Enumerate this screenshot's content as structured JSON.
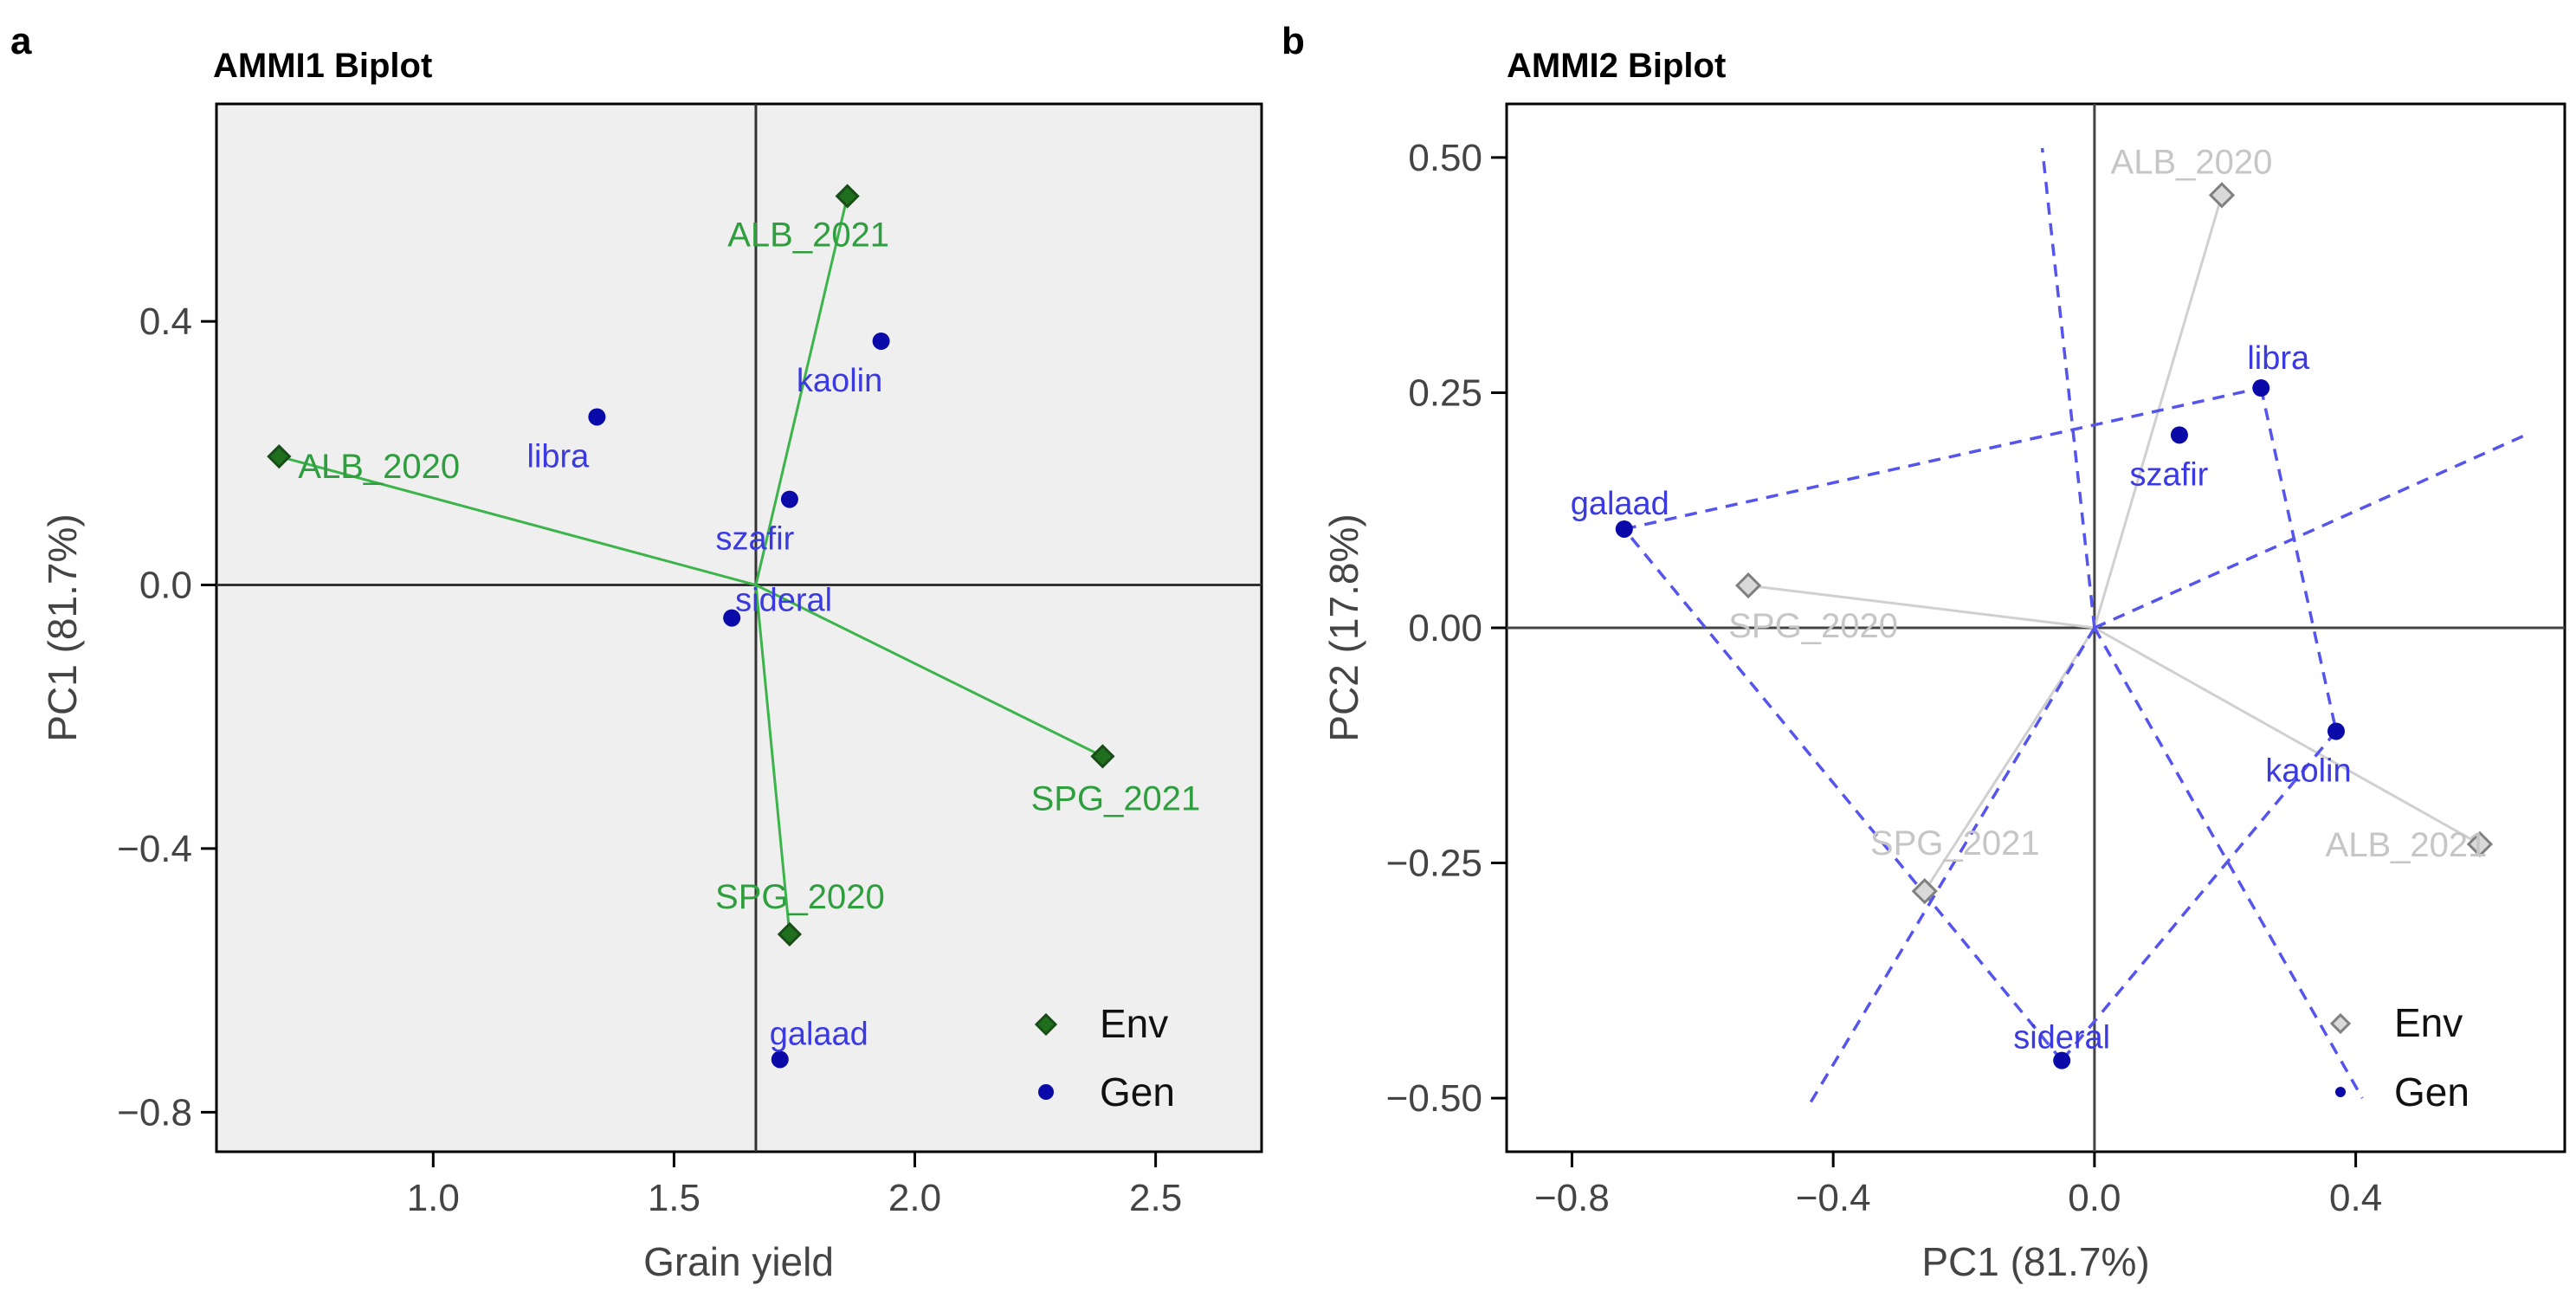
{
  "panel_labels": [
    "a",
    "b"
  ],
  "chart_data": [
    {
      "type": "scatter",
      "title": "AMMI1 Biplot",
      "xlabel": "Grain yield",
      "ylabel": "PC1 (81.7%)",
      "xlim": [
        0.55,
        2.72
      ],
      "ylim": [
        -0.86,
        0.73
      ],
      "xticks": [
        1.0,
        1.5,
        2.0,
        2.5
      ],
      "xtick_labels": [
        "1.0",
        "1.5",
        "2.0",
        "2.5"
      ],
      "yticks": [
        0.4,
        0.0,
        -0.4,
        -0.8
      ],
      "ytick_labels": [
        "0.4",
        "0.0",
        "−0.4",
        "−0.8"
      ],
      "origin": [
        1.67,
        0.0
      ],
      "background": "#efefef",
      "env_color": "#2e9e3e",
      "env_marker_color": "#1f6f1f",
      "gen_color": "#3a3ae0",
      "gen_marker_color": "#0a0aa8",
      "vector_color": "#3cb44b",
      "series": [
        {
          "name": "Env",
          "points": [
            {
              "label": "ALB_2020",
              "x": 0.68,
              "y": 0.195
            },
            {
              "label": "ALB_2021",
              "x": 1.86,
              "y": 0.59
            },
            {
              "label": "SPG_2020",
              "x": 1.74,
              "y": -0.53
            },
            {
              "label": "SPG_2021",
              "x": 2.39,
              "y": -0.26
            }
          ]
        },
        {
          "name": "Gen",
          "points": [
            {
              "label": "libra",
              "x": 1.34,
              "y": 0.255
            },
            {
              "label": "kaolin",
              "x": 1.93,
              "y": 0.37
            },
            {
              "label": "szafir",
              "x": 1.74,
              "y": 0.13
            },
            {
              "label": "sideral",
              "x": 1.62,
              "y": -0.05
            },
            {
              "label": "galaad",
              "x": 1.72,
              "y": -0.72
            }
          ]
        }
      ],
      "legend": {
        "entries": [
          "Env",
          "Gen"
        ],
        "position": "bottom-right"
      }
    },
    {
      "type": "scatter",
      "title": "AMMI2 Biplot",
      "xlabel": "PC1 (81.7%)",
      "ylabel": "PC2 (17.8%)",
      "xlim": [
        -0.9,
        0.72
      ],
      "ylim": [
        -0.557,
        0.557
      ],
      "xticks": [
        -0.8,
        -0.4,
        0.0,
        0.4
      ],
      "xtick_labels": [
        "−0.8",
        "−0.4",
        "0.0",
        "0.4"
      ],
      "yticks": [
        0.5,
        0.25,
        0.0,
        -0.25,
        -0.5
      ],
      "ytick_labels": [
        "0.50",
        "0.25",
        "0.00",
        "−0.25",
        "−0.50"
      ],
      "background": "#ffffff",
      "env_color": "#c6c6c6",
      "env_marker_color": "#808080",
      "gen_color": "#3a3ae0",
      "gen_marker_color": "#0a0aa8",
      "env_vector_color": "#d0d0d0",
      "polygon_color": "#5555ee",
      "series": [
        {
          "name": "Env",
          "points": [
            {
              "label": "ALB_2020",
              "x": 0.195,
              "y": 0.46
            },
            {
              "label": "ALB_2021",
              "x": 0.59,
              "y": -0.23
            },
            {
              "label": "SPG_2020",
              "x": -0.53,
              "y": 0.045
            },
            {
              "label": "SPG_2021",
              "x": -0.26,
              "y": -0.28
            }
          ]
        },
        {
          "name": "Gen",
          "points": [
            {
              "label": "galaad",
              "x": -0.72,
              "y": 0.105
            },
            {
              "label": "libra",
              "x": 0.255,
              "y": 0.255
            },
            {
              "label": "szafir",
              "x": 0.13,
              "y": 0.205
            },
            {
              "label": "kaolin",
              "x": 0.37,
              "y": -0.11
            },
            {
              "label": "sideral",
              "x": -0.05,
              "y": -0.46
            }
          ]
        }
      ],
      "convex_hull": [
        "galaad",
        "libra",
        "kaolin",
        "sideral"
      ],
      "sector_rays": [
        {
          "x": -0.08,
          "y": 0.51
        },
        {
          "x": 0.66,
          "y": 0.205
        },
        {
          "x": 0.41,
          "y": -0.5
        },
        {
          "x": -0.435,
          "y": -0.505
        }
      ],
      "legend": {
        "entries": [
          "Env",
          "Gen"
        ],
        "position": "bottom-right"
      }
    }
  ]
}
